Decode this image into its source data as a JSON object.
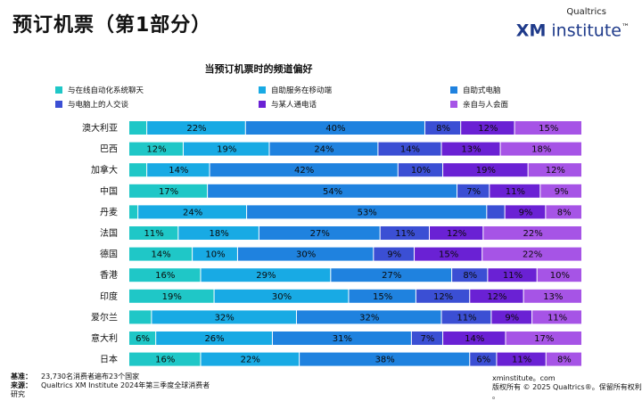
{
  "page": {
    "title": "预订机票（第1部分）",
    "brand_small": "Qualtrics",
    "brand_xm": "XM",
    "brand_inst": "institute",
    "brand_tm": "™"
  },
  "colors": [
    "#1fc7c7",
    "#18aae4",
    "#1f82df",
    "#3b4fd4",
    "#6a21d4",
    "#a654e6"
  ],
  "chart_data": {
    "type": "bar",
    "orientation": "horizontal",
    "stacked": true,
    "percent": true,
    "title": "当预订机票时的频道偏好",
    "legend_position": "top",
    "categories": [
      "澳大利亚",
      "巴西",
      "加拿大",
      "中国",
      "丹麦",
      "法国",
      "德国",
      "香港",
      "印度",
      "爱尔兰",
      "意大利",
      "日本"
    ],
    "series": [
      {
        "name": "与在线自动化系统聊天",
        "values": [
          4,
          12,
          4,
          17,
          2,
          11,
          14,
          16,
          19,
          5,
          6,
          16
        ]
      },
      {
        "name": "自助服务在移动端",
        "values": [
          22,
          19,
          14,
          0,
          24,
          18,
          10,
          29,
          30,
          32,
          26,
          22
        ]
      },
      {
        "name": "自助式电脑",
        "values": [
          40,
          24,
          42,
          54,
          53,
          27,
          30,
          27,
          15,
          32,
          31,
          38
        ]
      },
      {
        "name": "与电脑上的人交谈",
        "values": [
          8,
          14,
          10,
          7,
          4,
          11,
          9,
          8,
          12,
          11,
          7,
          6
        ]
      },
      {
        "name": "与某人通电话",
        "values": [
          12,
          13,
          19,
          11,
          9,
          12,
          15,
          11,
          12,
          9,
          14,
          11
        ]
      },
      {
        "name": "亲自与人会面",
        "values": [
          15,
          18,
          12,
          9,
          8,
          22,
          22,
          10,
          13,
          11,
          17,
          8
        ]
      }
    ],
    "labels": [
      [
        "",
        "22%",
        "40%",
        "8%",
        "12%",
        "15%"
      ],
      [
        "12%",
        "19%",
        "24%",
        "14%",
        "13%",
        "18%"
      ],
      [
        "",
        "14%",
        "42%",
        "10%",
        "19%",
        "12%"
      ],
      [
        "17%",
        "",
        "54%",
        "7%",
        "11%",
        "9%"
      ],
      [
        "",
        "24%",
        "53%",
        "",
        "9%",
        "8%"
      ],
      [
        "11%",
        "18%",
        "27%",
        "11%",
        "12%",
        "22%"
      ],
      [
        "14%",
        "10%",
        "30%",
        "9%",
        "15%",
        "22%"
      ],
      [
        "16%",
        "29%",
        "27%",
        "8%",
        "11%",
        "10%"
      ],
      [
        "19%",
        "30%",
        "15%",
        "12%",
        "12%",
        "13%"
      ],
      [
        "",
        "32%",
        "32%",
        "11%",
        "9%",
        "11%"
      ],
      [
        "6%",
        "26%",
        "31%",
        "7%",
        "14%",
        "17%"
      ],
      [
        "16%",
        "22%",
        "38%",
        "6%",
        "11%",
        "8%"
      ]
    ]
  },
  "footer": {
    "base_label": "基准：",
    "base_text": "23,730名消费者遍布23个国家",
    "source_label": "来源：",
    "source_text": "Qualtrics XM Institute 2024年第三季度全球消费者",
    "source_text_2": "研究",
    "website": "xminstitute。com",
    "copyright": "版权所有 © 2025 Qualtrics®。保留所有权利",
    "copyright_2": "。"
  }
}
